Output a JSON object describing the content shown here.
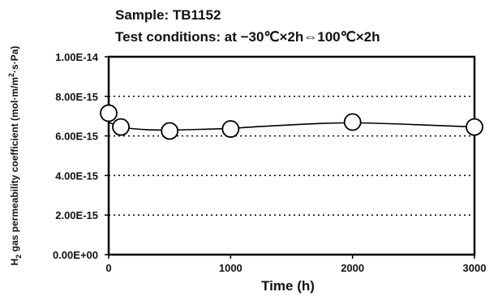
{
  "chart_data": {
    "type": "line",
    "title": "Sample: TB1152",
    "subtitle": "Test conditions: at −30℃×2h⇔100℃×2h",
    "xlabel": "Time (h)",
    "ylabel": {
      "main": "H",
      "sub": "2",
      "rest": " gas permeability coefficient (mol·m/m",
      "sup": "2",
      "tail": "·s·Pa)"
    },
    "xlim": [
      0,
      3000
    ],
    "ylim": [
      0,
      1e-14
    ],
    "x_ticks": [
      0,
      1000,
      2000,
      3000
    ],
    "x_tick_labels": [
      "0",
      "1000",
      "2000",
      "3000"
    ],
    "y_ticks": [
      0,
      2e-15,
      4e-15,
      6e-15,
      8e-15,
      1e-14
    ],
    "y_tick_labels": [
      "0.00E+00",
      "2.00E-15",
      "4.00E-15",
      "6.00E-15",
      "8.00E-15",
      "1.00E-14"
    ],
    "grid": "horizontal-dotted",
    "series": [
      {
        "x": [
          0,
          100,
          500,
          1000,
          2000,
          3000
        ],
        "values": [
          7.15e-15,
          6.45e-15,
          6.25e-15,
          6.35e-15,
          6.7e-15,
          6.45e-15
        ],
        "marker": "open-circle",
        "color": "#000000"
      }
    ],
    "curve": {
      "x": [
        0,
        100,
        300,
        500,
        750,
        1000,
        1250,
        1500,
        1750,
        2000,
        2300,
        2600,
        3000
      ],
      "values": [
        6.7e-15,
        6.45e-15,
        6.32e-15,
        6.3e-15,
        6.33e-15,
        6.38e-15,
        6.48e-15,
        6.56e-15,
        6.63e-15,
        6.66e-15,
        6.62e-15,
        6.55e-15,
        6.45e-15
      ]
    }
  }
}
